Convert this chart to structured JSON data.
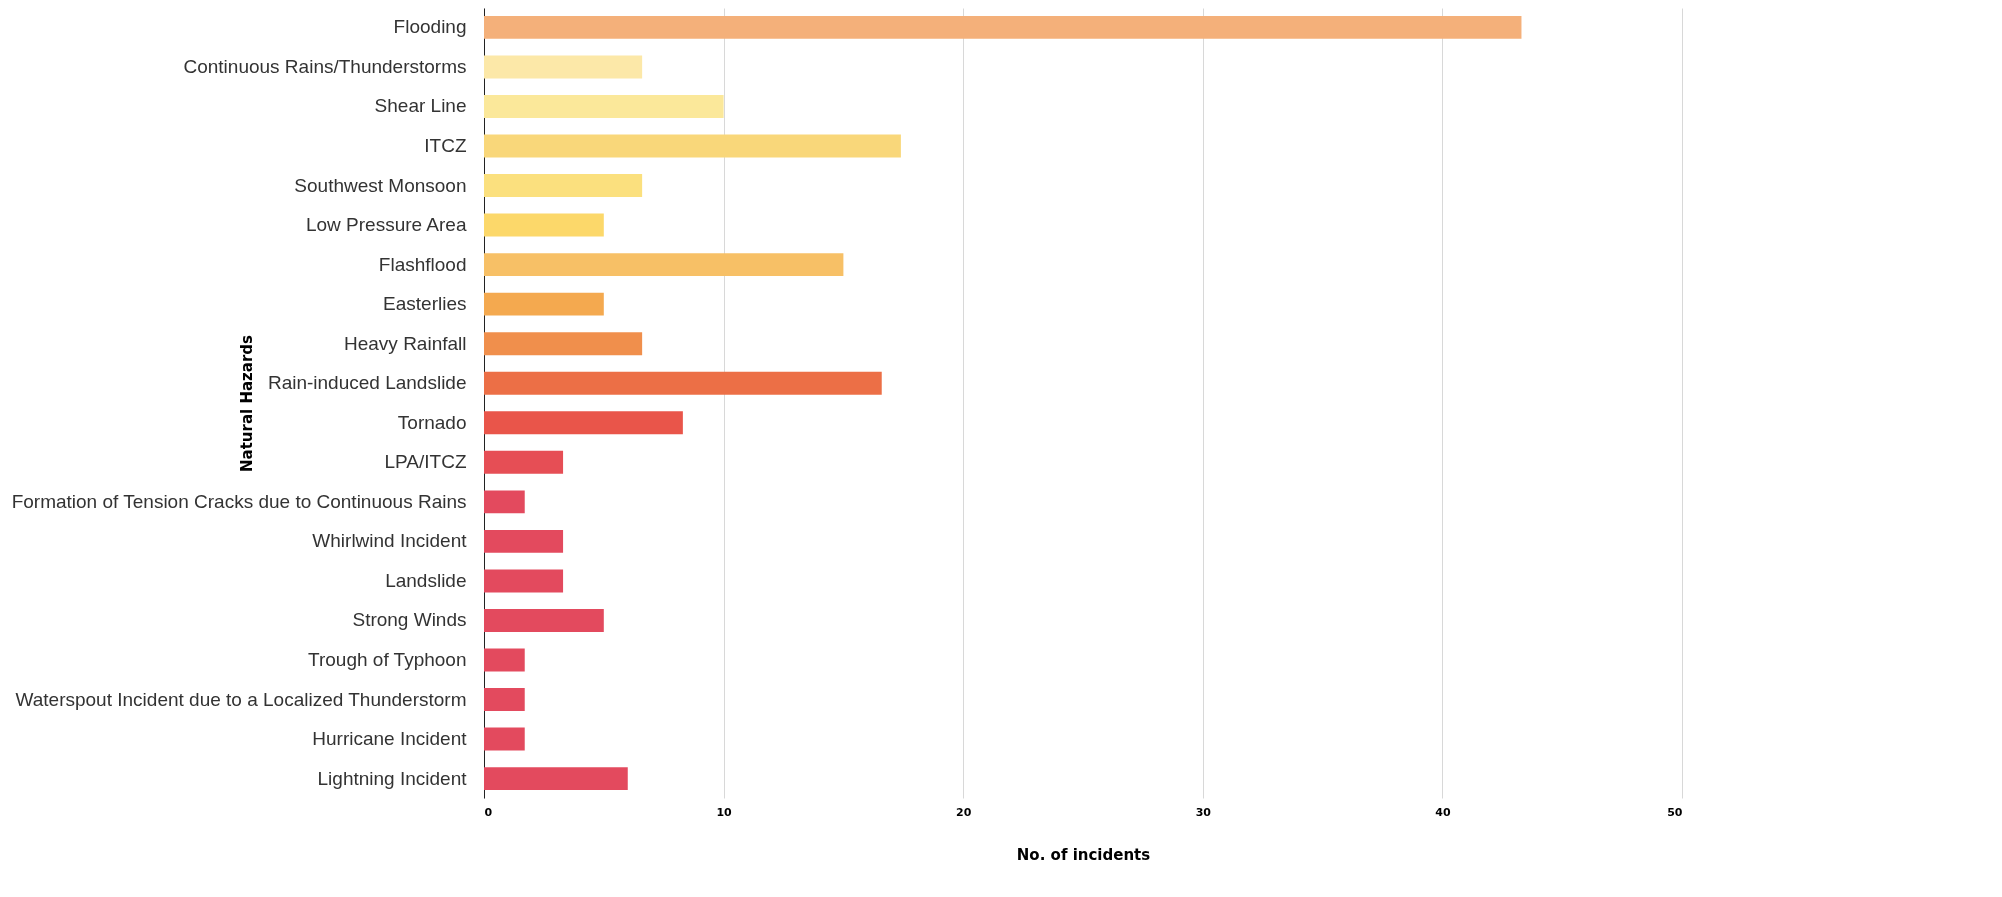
{
  "chart_data": {
    "type": "bar",
    "orientation": "horizontal",
    "xlabel": "No. of incidents",
    "ylabel": "Natural Hazards",
    "categories": [
      "Flooding",
      "Continuous Rains/Thunderstorms",
      "Shear Line",
      "ITCZ",
      "Southwest Monsoon",
      "Low Pressure Area",
      "Flashflood",
      "Easterlies",
      "Heavy Rainfall",
      "Rain-induced Landslide",
      "Tornado",
      "LPA/ITCZ",
      "Formation of Tension Cracks due to Continuous Rains",
      "Whirlwind Incident",
      "Landslide",
      "Strong Winds",
      "Trough of Typhoon",
      "Waterspout Incident due to a Localized Thunderstorm",
      "Hurricane Incident",
      "Lightning Incident"
    ],
    "values": [
      43.3,
      6.6,
      10,
      17.4,
      6.6,
      5,
      15,
      5,
      6.6,
      16.6,
      8.3,
      3.3,
      1.7,
      3.3,
      3.3,
      5,
      1.7,
      1.7,
      1.7,
      6
    ],
    "colors": [
      "#f4b07a",
      "#fce8a8",
      "#fbe89a",
      "#f9d77a",
      "#fbe07e",
      "#fcd86a",
      "#f7c066",
      "#f4a94f",
      "#f08f4c",
      "#ec6f46",
      "#e9554a",
      "#e64e55",
      "#e34a5e",
      "#e34a5e",
      "#e34a5e",
      "#e34a5e",
      "#e34a5e",
      "#e34a5e",
      "#e34a5e",
      "#e34a5e"
    ],
    "xlim": [
      0,
      50
    ],
    "xticks": [
      0,
      10,
      20,
      30,
      40,
      50
    ],
    "grid": "x"
  }
}
